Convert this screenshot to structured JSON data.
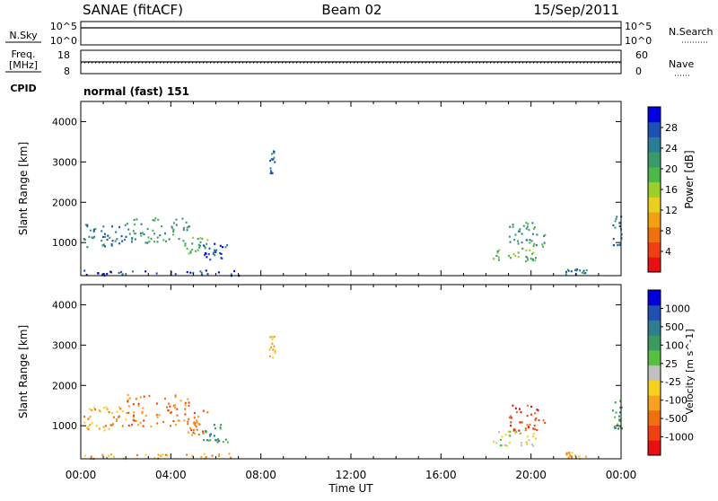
{
  "header": {
    "station": "SANAE (fitACF)",
    "beam": "Beam 02",
    "date": "15/Sep/2011"
  },
  "nsky_panel": {
    "left_label": "N.Sky",
    "right_label": "N.Search",
    "left_ticks": [
      "10^5",
      "10^0"
    ],
    "right_ticks": [
      "10^5",
      "10^0"
    ]
  },
  "freq_panel": {
    "left_label_1": "Freq.",
    "left_label_2": "[MHz]",
    "right_label": "Nave",
    "left_ticks": [
      "18",
      "8"
    ],
    "right_ticks": [
      "60",
      "0"
    ]
  },
  "cpid": {
    "label": "CPID",
    "value": "normal (fast) 151"
  },
  "x_axis": {
    "label": "Time UT",
    "ticks": [
      "00:00",
      "04:00",
      "08:00",
      "12:00",
      "16:00",
      "20:00",
      "00:00"
    ]
  },
  "colors": {
    "power_scale": [
      "#0000e0",
      "#1e4fb4",
      "#2a7d96",
      "#3a9b6a",
      "#4db84a",
      "#9ccf2c",
      "#e8d020",
      "#f0a010",
      "#f07010",
      "#ee4010",
      "#e81010"
    ],
    "velocity_scale": [
      "#0000d8",
      "#2050b0",
      "#2e7e90",
      "#3a9a60",
      "#58c040",
      "#c0c0c0",
      "#f8d020",
      "#f8a020",
      "#f07010",
      "#ee4010",
      "#e81010"
    ]
  },
  "chart_data": [
    {
      "type": "heatmap",
      "title": "",
      "xlabel": "Time UT",
      "ylabel": "Slant Range [km]",
      "x_range_hours": [
        0,
        24
      ],
      "ylim": [
        180,
        4500
      ],
      "y_ticks": [
        1000,
        2000,
        3000,
        4000
      ],
      "colorbar": {
        "label": "Power [dB]",
        "range": [
          0,
          32
        ],
        "ticks": [
          "4",
          "8",
          "12",
          "16",
          "20",
          "24",
          "28"
        ]
      },
      "echo_regions": [
        {
          "t_start": 0.1,
          "t_end": 2.0,
          "r_min": 900,
          "r_max": 1500,
          "level": 2
        },
        {
          "t_start": 2.0,
          "t_end": 4.8,
          "r_min": 1000,
          "r_max": 1650,
          "level": 3
        },
        {
          "t_start": 4.6,
          "t_end": 5.6,
          "r_min": 750,
          "r_max": 1150,
          "level": 4
        },
        {
          "t_start": 5.4,
          "t_end": 6.5,
          "r_min": 600,
          "r_max": 1050,
          "level": 1
        },
        {
          "t_start": 0.1,
          "t_end": 7.0,
          "r_min": 200,
          "r_max": 330,
          "level": 1
        },
        {
          "t_start": 8.35,
          "t_end": 8.6,
          "r_min": 2700,
          "r_max": 3300,
          "level": 2
        },
        {
          "t_start": 18.3,
          "t_end": 20.2,
          "r_min": 550,
          "r_max": 900,
          "level": 4
        },
        {
          "t_start": 19.0,
          "t_end": 20.6,
          "r_min": 900,
          "r_max": 1550,
          "level": 3
        },
        {
          "t_start": 21.5,
          "t_end": 22.5,
          "r_min": 200,
          "r_max": 360,
          "level": 2
        },
        {
          "t_start": 23.6,
          "t_end": 24.0,
          "r_min": 950,
          "r_max": 1700,
          "level": 2
        }
      ]
    },
    {
      "type": "heatmap",
      "title": "",
      "xlabel": "Time UT",
      "ylabel": "Slant Range [km]",
      "x_range_hours": [
        0,
        24
      ],
      "ylim": [
        180,
        4500
      ],
      "y_ticks": [
        1000,
        2000,
        3000,
        4000
      ],
      "colorbar": {
        "label": "Velocity [m s^-1]",
        "range": [
          -1250,
          1250
        ],
        "ticks": [
          "1000",
          "500",
          "100",
          "25",
          "-25",
          "-100",
          "-500",
          "-1000"
        ]
      },
      "echo_regions": [
        {
          "t_start": 0.1,
          "t_end": 2.0,
          "r_min": 900,
          "r_max": 1500,
          "level": 7
        },
        {
          "t_start": 2.0,
          "t_end": 4.8,
          "r_min": 1000,
          "r_max": 1800,
          "level": 8
        },
        {
          "t_start": 4.6,
          "t_end": 5.6,
          "r_min": 750,
          "r_max": 1400,
          "level": 8
        },
        {
          "t_start": 5.4,
          "t_end": 6.5,
          "r_min": 600,
          "r_max": 1050,
          "level": 3
        },
        {
          "t_start": 0.1,
          "t_end": 7.0,
          "r_min": 200,
          "r_max": 330,
          "level": 7
        },
        {
          "t_start": 8.35,
          "t_end": 8.6,
          "r_min": 2700,
          "r_max": 3300,
          "level": 6
        },
        {
          "t_start": 18.3,
          "t_end": 20.2,
          "r_min": 500,
          "r_max": 900,
          "level": 5
        },
        {
          "t_start": 19.0,
          "t_end": 20.6,
          "r_min": 900,
          "r_max": 1550,
          "level": 9
        },
        {
          "t_start": 21.5,
          "t_end": 22.5,
          "r_min": 200,
          "r_max": 360,
          "level": 7
        },
        {
          "t_start": 23.6,
          "t_end": 24.0,
          "r_min": 950,
          "r_max": 1700,
          "level": 3
        }
      ]
    }
  ]
}
